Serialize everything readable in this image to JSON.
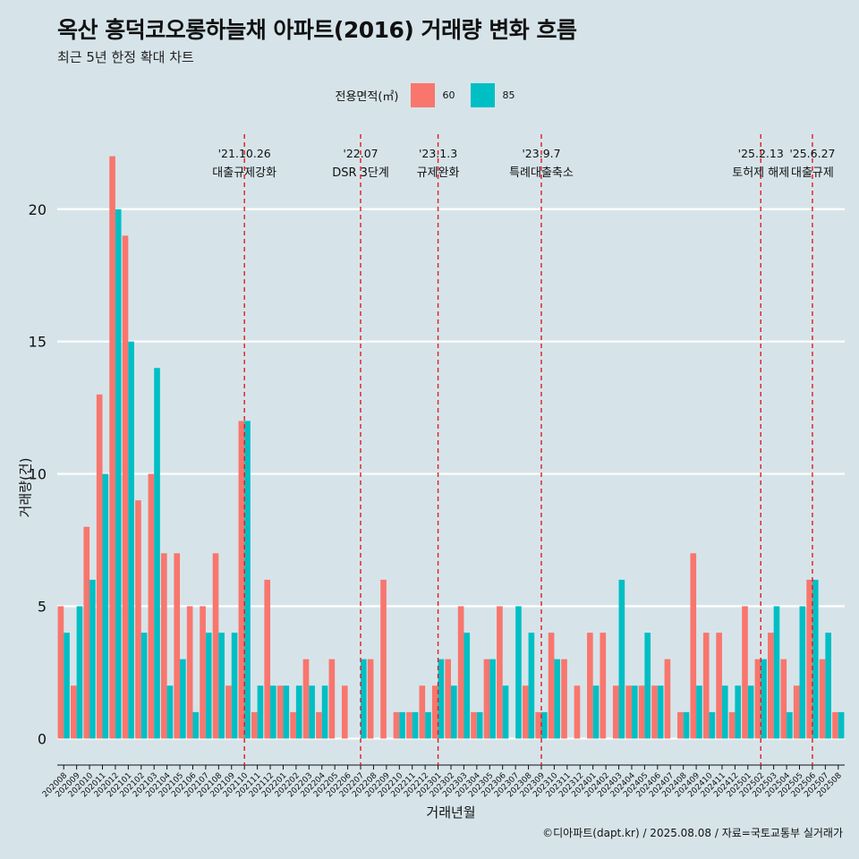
{
  "title": "옥산 흥덕코오롱하늘채 아파트(2016) 거래량 변화 흐름",
  "subtitle": "최근 5년 한정 확대 차트",
  "caption": "©디아파트(dapt.kr) / 2025.08.08 / 자료=국토교통부 실거래가",
  "colors": {
    "s60": "#f8766d",
    "s85": "#00bfc4",
    "vline": "#e31a1c",
    "grid": "#ffffff",
    "bg": "#d6e4ea"
  },
  "chart_data": {
    "type": "bar",
    "title": "옥산 흥덕코오롱하늘채 아파트(2016) 거래량 변화 흐름",
    "xlabel": "거래년월",
    "ylabel": "거래량(건)",
    "ylim": [
      -1,
      23
    ],
    "yticks": [
      0,
      5,
      10,
      15,
      20
    ],
    "grid": true,
    "legend_title": "전용면적(㎡)",
    "legend_position": "top",
    "categories": [
      "202008",
      "202009",
      "202010",
      "202011",
      "202012",
      "202101",
      "202102",
      "202103",
      "202104",
      "202105",
      "202106",
      "202107",
      "202108",
      "202109",
      "202110",
      "202111",
      "202112",
      "202201",
      "202202",
      "202203",
      "202204",
      "202205",
      "202206",
      "202207",
      "202208",
      "202209",
      "202210",
      "202211",
      "202212",
      "202301",
      "202302",
      "202303",
      "202304",
      "202305",
      "202306",
      "202307",
      "202308",
      "202309",
      "202310",
      "202311",
      "202312",
      "202401",
      "202402",
      "202403",
      "202404",
      "202405",
      "202406",
      "202407",
      "202408",
      "202409",
      "202410",
      "202411",
      "202412",
      "202501",
      "202502",
      "202503",
      "202504",
      "202505",
      "202506",
      "202507",
      "202508"
    ],
    "series": [
      {
        "name": "60",
        "values": [
          5,
          2,
          8,
          13,
          22,
          19,
          9,
          10,
          7,
          7,
          5,
          5,
          7,
          2,
          12,
          1,
          6,
          2,
          1,
          3,
          1,
          3,
          2,
          0,
          3,
          6,
          1,
          1,
          2,
          2,
          3,
          5,
          1,
          3,
          5,
          0,
          2,
          1,
          4,
          3,
          2,
          4,
          4,
          2,
          2,
          2,
          2,
          3,
          1,
          7,
          4,
          4,
          1,
          5,
          3,
          4,
          3,
          2,
          6,
          3,
          1
        ]
      },
      {
        "name": "85",
        "values": [
          4,
          5,
          6,
          10,
          20,
          15,
          4,
          14,
          2,
          3,
          1,
          4,
          4,
          4,
          12,
          2,
          2,
          2,
          2,
          2,
          2,
          0,
          0,
          3,
          0,
          0,
          1,
          1,
          1,
          3,
          2,
          4,
          1,
          3,
          2,
          5,
          4,
          1,
          3,
          0,
          0,
          2,
          0,
          6,
          2,
          4,
          2,
          0,
          1,
          2,
          1,
          2,
          2,
          2,
          3,
          5,
          1,
          5,
          6,
          4,
          1
        ]
      }
    ],
    "annotations": [
      {
        "date": "'21.10.26",
        "label": "대출규제강화",
        "at": "202110"
      },
      {
        "date": "'22.07",
        "label": "DSR 3단계",
        "at": "202207"
      },
      {
        "date": "'23.1.3",
        "label": "규제완화",
        "at": "202301"
      },
      {
        "date": "'23.9.7",
        "label": "특례대출축소",
        "at": "202309"
      },
      {
        "date": "'25.2.13",
        "label": "토허제 해제",
        "at": "202502"
      },
      {
        "date": "'25.6.27",
        "label": "대출규제",
        "at": "202506"
      }
    ]
  }
}
